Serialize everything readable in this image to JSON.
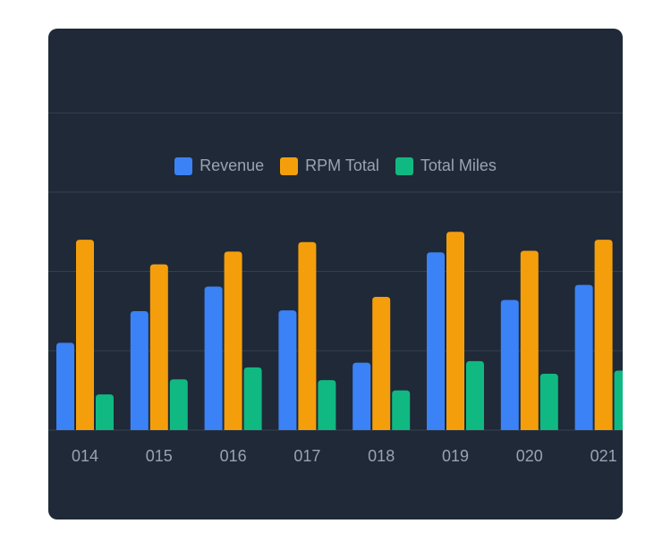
{
  "colors": {
    "background": "#1f2937",
    "grid": "#374151",
    "revenue": "#3b82f6",
    "rpm_total": "#f59e0b",
    "total_miles": "#10b981",
    "text": "#9aa3b1"
  },
  "chart_data": {
    "type": "bar",
    "title": "",
    "xlabel": "",
    "ylabel": "",
    "categories": [
      "014",
      "015",
      "016",
      "017",
      "018",
      "019",
      "020",
      "021"
    ],
    "series": [
      {
        "name": "Revenue",
        "color": "#3b82f6",
        "values": [
          1.1,
          1.5,
          1.81,
          1.51,
          0.85,
          2.24,
          1.64,
          1.83
        ]
      },
      {
        "name": "RPM Total",
        "color": "#f59e0b",
        "values": [
          2.4,
          2.09,
          2.25,
          2.37,
          1.68,
          2.5,
          2.26,
          2.4
        ]
      },
      {
        "name": "Total Miles",
        "color": "#10b981",
        "values": [
          0.45,
          0.64,
          0.79,
          0.63,
          0.5,
          0.87,
          0.71,
          0.75
        ]
      }
    ],
    "ylim": [
      0,
      3
    ],
    "grid": true,
    "legend_position": "top-center"
  }
}
